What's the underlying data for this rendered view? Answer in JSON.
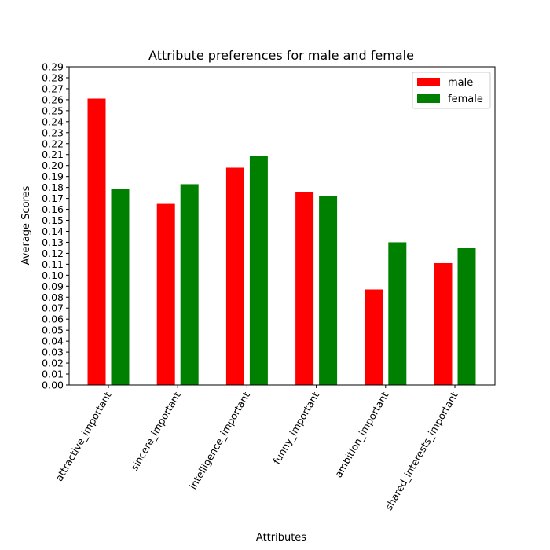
{
  "chart_data": {
    "type": "bar",
    "title": "Attribute preferences for male and female",
    "xlabel": "Attributes",
    "ylabel": "Average Scores",
    "ylim": [
      0,
      0.29
    ],
    "yticks": [
      "0.00",
      "0.01",
      "0.02",
      "0.03",
      "0.04",
      "0.05",
      "0.06",
      "0.07",
      "0.08",
      "0.09",
      "0.10",
      "0.11",
      "0.12",
      "0.13",
      "0.14",
      "0.15",
      "0.16",
      "0.17",
      "0.18",
      "0.19",
      "0.20",
      "0.21",
      "0.22",
      "0.23",
      "0.24",
      "0.25",
      "0.26",
      "0.27",
      "0.28",
      "0.29"
    ],
    "categories": [
      "attractive_important",
      "sincere_important",
      "intelligence_important",
      "funny_important",
      "ambition_important",
      "shared_interests_important"
    ],
    "series": [
      {
        "name": "male",
        "color": "#ff0000",
        "values": [
          0.261,
          0.165,
          0.198,
          0.176,
          0.087,
          0.111
        ]
      },
      {
        "name": "female",
        "color": "#008000",
        "values": [
          0.179,
          0.183,
          0.209,
          0.172,
          0.13,
          0.125
        ]
      }
    ],
    "grid": false,
    "legend_position": "top-right"
  }
}
